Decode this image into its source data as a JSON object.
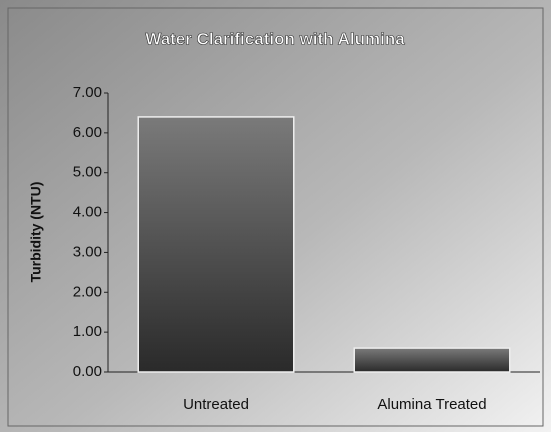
{
  "chart_data": {
    "type": "bar",
    "title": "Water Clarification with Alumina",
    "y_label": "Turbidity (NTU)",
    "categories": [
      "Untreated",
      "Alumina Treated"
    ],
    "values": [
      6.4,
      0.6
    ],
    "color": "#3a3a3a",
    "ylim": [
      0,
      7
    ],
    "yticks": [
      {
        "value": 0,
        "label": "0.00"
      },
      {
        "value": 1,
        "label": "1.00"
      },
      {
        "value": 2,
        "label": "2.00"
      },
      {
        "value": 3,
        "label": "3.00"
      },
      {
        "value": 4,
        "label": "4.00"
      },
      {
        "value": 5,
        "label": "5.00"
      },
      {
        "value": 6,
        "label": "6.00"
      },
      {
        "value": 7,
        "label": "7.00"
      }
    ]
  }
}
